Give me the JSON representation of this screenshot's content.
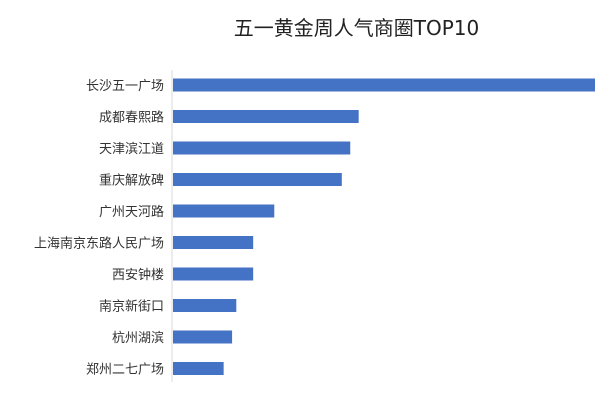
{
  "chart_data": {
    "type": "bar",
    "orientation": "horizontal",
    "title": "五一黄金周人气商圈TOP10",
    "xlabel": "",
    "ylabel": "",
    "categories": [
      "长沙五一广场",
      "成都春熙路",
      "天津滨江道",
      "重庆解放碑",
      "广州天河路",
      "上海南京东路人民广场",
      "西安钟楼",
      "南京新街口",
      "杭州湖滨",
      "郑州二七广场"
    ],
    "values": [
      100,
      44,
      42,
      40,
      24,
      19,
      19,
      15,
      14,
      12
    ],
    "xlim": [
      0,
      100
    ],
    "grid": false,
    "legend": "none",
    "bar_color": "#4472C4",
    "axis_color": "#D9D9D9"
  }
}
